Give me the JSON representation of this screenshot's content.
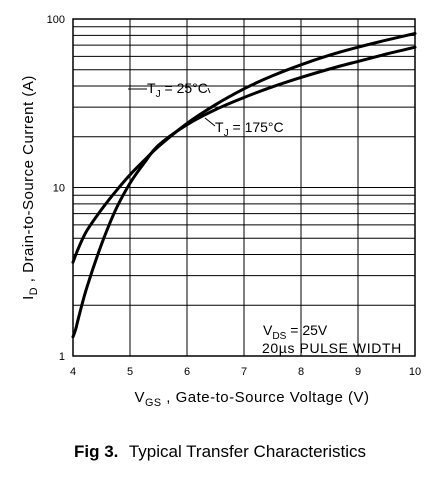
{
  "figure": {
    "caption_label": "Fig 3.",
    "caption_text": "Typical Transfer Characteristics"
  },
  "chart_data": {
    "type": "line",
    "title": "",
    "xlabel_parts": [
      "V",
      "GS",
      " , Gate-to-Source Voltage (V)"
    ],
    "ylabel_parts": [
      "I",
      "D",
      " , Drain-to-Source Current (A)"
    ],
    "xlim": [
      4,
      10
    ],
    "ylim": [
      1,
      100
    ],
    "yscale": "log",
    "grid": true,
    "x_ticks": [
      "4",
      "5",
      "6",
      "7",
      "8",
      "9",
      "10"
    ],
    "y_ticks": [
      "1",
      "10",
      "100"
    ],
    "annotations": [
      {
        "parts": [
          "T",
          "J",
          " = 25°C"
        ]
      },
      {
        "parts": [
          "T",
          "J",
          " = 175°C"
        ]
      },
      {
        "parts": [
          "V",
          "DS",
          " = 25V"
        ]
      },
      {
        "parts": [
          "20µs PULSE WIDTH",
          "",
          ""
        ]
      }
    ],
    "series": [
      {
        "x": [
          4.0,
          4.1,
          4.25,
          4.5,
          4.75,
          5.0,
          5.25,
          5.5,
          6.0,
          6.5,
          7.0,
          7.5,
          8.0,
          8.5,
          9.0,
          9.5,
          10.0
        ],
        "y": [
          3.6,
          4.4,
          5.6,
          7.4,
          9.5,
          11.9,
          14.5,
          17.5,
          24.0,
          31.0,
          38.5,
          46.0,
          53.5,
          61.0,
          68.0,
          75.0,
          82.0
        ]
      },
      {
        "x": [
          4.0,
          4.05,
          4.1,
          4.25,
          4.5,
          4.75,
          5.0,
          5.25,
          5.5,
          6.0,
          6.5,
          7.0,
          7.5,
          8.0,
          8.5,
          9.0,
          9.5,
          10.0
        ],
        "y": [
          1.3,
          1.45,
          1.7,
          2.6,
          4.6,
          7.4,
          10.6,
          14.0,
          17.8,
          23.6,
          29.0,
          34.2,
          39.6,
          45.0,
          50.5,
          56.0,
          62.0,
          68.0
        ]
      }
    ]
  }
}
